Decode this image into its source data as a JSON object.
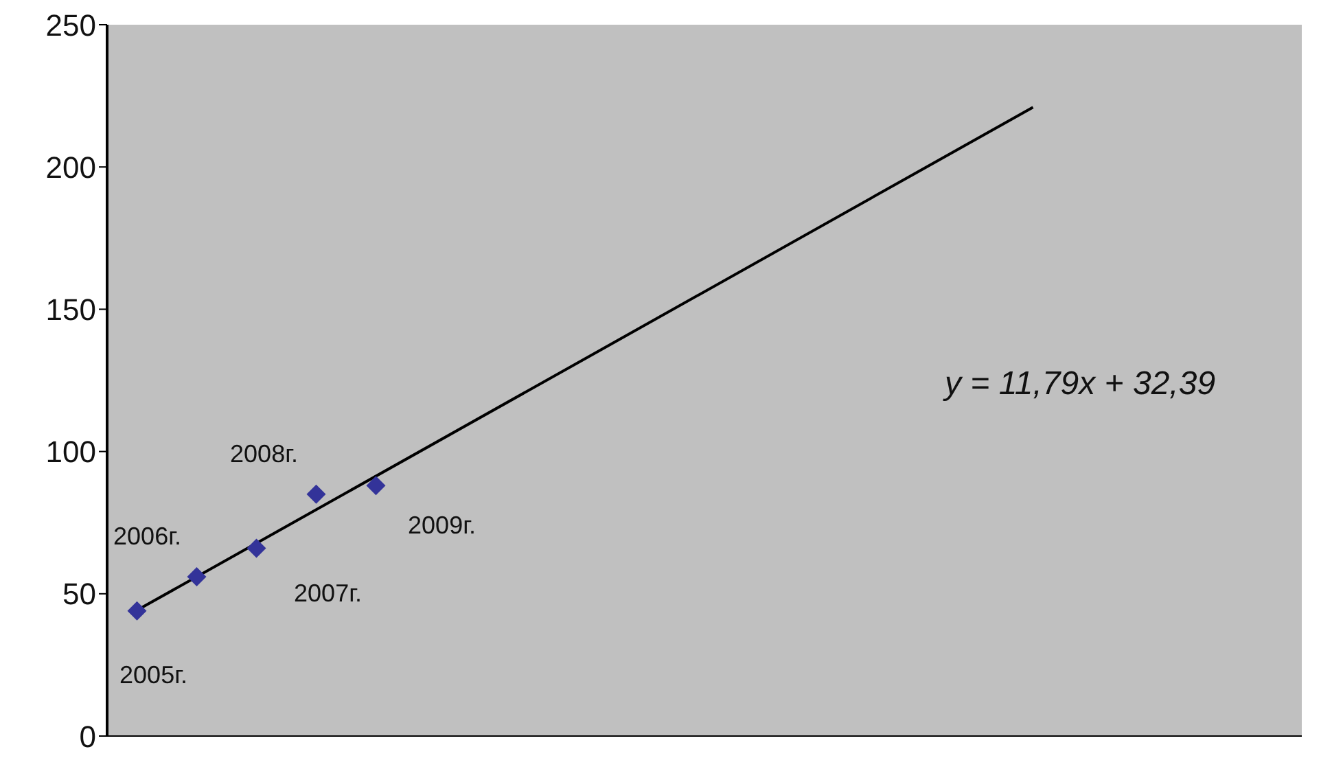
{
  "chart_data": {
    "type": "scatter",
    "categories": [
      null,
      null,
      null,
      null,
      null,
      null,
      null,
      null,
      null,
      null,
      null,
      null,
      null,
      null,
      null,
      null,
      null,
      null,
      null,
      null
    ],
    "ylim": [
      0,
      250
    ],
    "yticks": [
      0,
      50,
      100,
      150,
      200,
      250
    ],
    "tick_labels": "y",
    "grid": false,
    "legend": false,
    "marker": "diamond",
    "series": [
      {
        "color": "#333399",
        "values": [
          44,
          56,
          66,
          85,
          88,
          null,
          null,
          null,
          null,
          null,
          null,
          null,
          null,
          null,
          null,
          null,
          null,
          null,
          null,
          null
        ]
      },
      {
        "type": "line",
        "color": "#000000",
        "values": [
          44.2,
          null,
          null,
          null,
          null,
          null,
          null,
          null,
          null,
          null,
          null,
          null,
          null,
          null,
          null,
          221,
          null,
          null,
          null,
          null
        ],
        "marker": "none",
        "line_style": "solid"
      }
    ],
    "annotations": [
      "2005г.",
      "2006г.",
      "2007г.",
      "2008г.",
      "2009г.",
      "y = 11,79x + 32,39"
    ]
  }
}
